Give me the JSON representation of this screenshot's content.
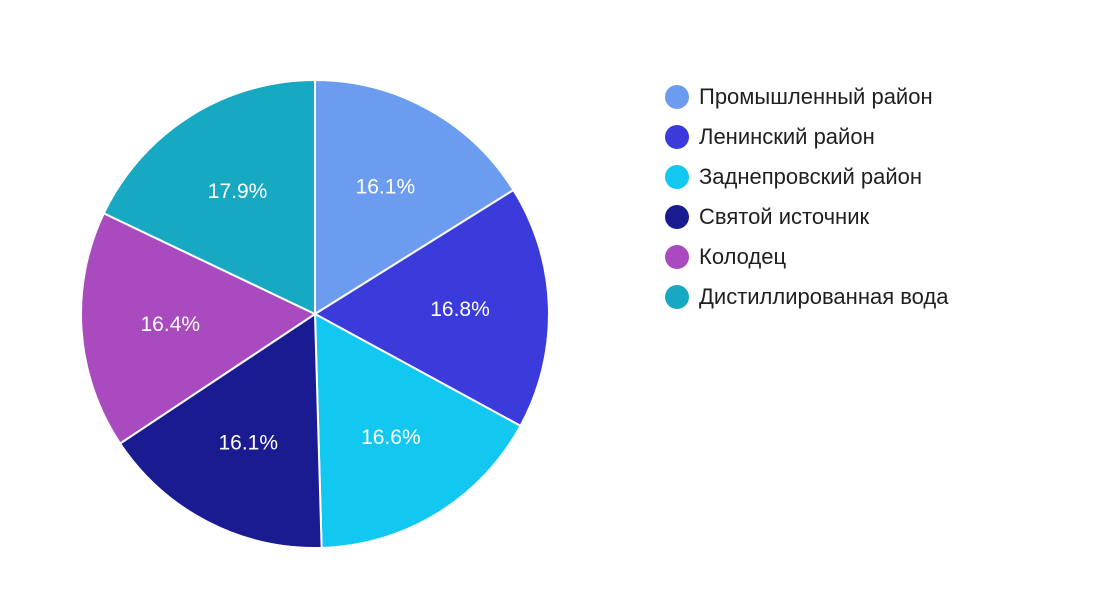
{
  "chart_data": {
    "type": "pie",
    "title": "",
    "series": [
      {
        "name": "Промышленный район",
        "value": 16.1,
        "label": "16.1%",
        "color": "#6b9cf0"
      },
      {
        "name": "Ленинский район",
        "value": 16.8,
        "label": "16.8%",
        "color": "#3b3bdb"
      },
      {
        "name": "Заднепровский район",
        "value": 16.6,
        "label": "16.6%",
        "color": "#13c8f0"
      },
      {
        "name": "Святой источник",
        "value": 16.1,
        "label": "16.1%",
        "color": "#1a1a91"
      },
      {
        "name": "Колодец",
        "value": 16.4,
        "label": "16.4%",
        "color": "#a94bbf"
      },
      {
        "name": "Дистиллированная вода",
        "value": 17.9,
        "label": "17.9%",
        "color": "#17a9c2"
      }
    ],
    "legend_position": "right",
    "start_angle": "top",
    "direction": "clockwise"
  }
}
